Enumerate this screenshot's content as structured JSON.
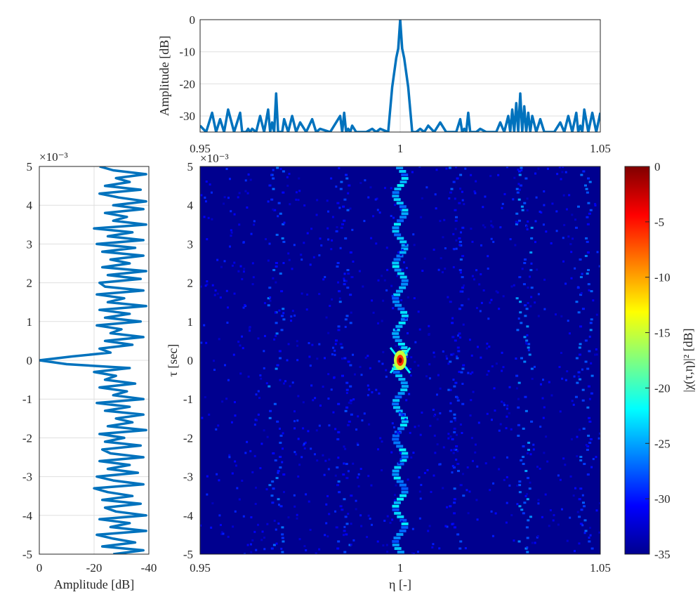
{
  "colors": {
    "series_line": "#0072BD",
    "heatmap_background": "#00008F",
    "axes": "#262626"
  },
  "chart_data": [
    {
      "id": "top-doppler-cut",
      "type": "line",
      "title": "",
      "xlabel": "",
      "ylabel": "Amplitude [dB]",
      "xlim": [
        0.95,
        1.05
      ],
      "ylim": [
        -35,
        0
      ],
      "x_ticks": [
        "0.95",
        "1",
        "1.05"
      ],
      "y_ticks": [
        "0",
        "-10",
        "-20",
        "-30"
      ],
      "grid": true,
      "series": [
        {
          "x": [
            0.95,
            0.953,
            0.955,
            0.957,
            0.96,
            0.961,
            0.962,
            0.963,
            0.965,
            0.967,
            0.968,
            0.969,
            0.97,
            0.971,
            0.973,
            0.975,
            0.978,
            0.98,
            0.985,
            0.986,
            0.987,
            0.988,
            0.99,
            0.993,
            0.995,
            0.997,
            0.998,
            0.999,
            0.9995,
            1.0,
            1.0005,
            1.001,
            1.002,
            1.003,
            1.005,
            1.007,
            1.01,
            1.013,
            1.015,
            1.016,
            1.017,
            1.018,
            1.02,
            1.023,
            1.025,
            1.027,
            1.028,
            1.029,
            1.03,
            1.031,
            1.032,
            1.033,
            1.035,
            1.037,
            1.04,
            1.042,
            1.044,
            1.045,
            1.046,
            1.048,
            1.05
          ],
          "y": [
            -33,
            -29,
            -31,
            -28,
            -29,
            -35,
            -34,
            -34,
            -30,
            -28,
            -32,
            -23,
            -35,
            -31,
            -30,
            -32,
            -31,
            -34,
            -30,
            -29,
            -34,
            -33,
            -35,
            -34,
            -34,
            -35,
            -21,
            -12,
            -9,
            0,
            -9,
            -12,
            -21,
            -35,
            -34,
            -33,
            -32,
            -35,
            -31,
            -34,
            -29,
            -35,
            -34,
            -35,
            -32,
            -30,
            -28,
            -26,
            -23,
            -27,
            -29,
            -30,
            -31,
            -35,
            -32,
            -30,
            -29,
            -33,
            -28,
            -29,
            -29
          ]
        }
      ]
    },
    {
      "id": "left-delay-cut",
      "type": "line",
      "title": "",
      "xlabel": "Amplitude [dB]",
      "ylabel": "",
      "xlim": [
        0,
        -40
      ],
      "ylim": [
        -5,
        5
      ],
      "x_ticks": [
        "0",
        "-20",
        "-40"
      ],
      "y_ticks": [
        "5",
        "4",
        "3",
        "2",
        "1",
        "0",
        "-1",
        "-2",
        "-3",
        "-4",
        "-5"
      ],
      "y_exponent": "×10⁻³",
      "grid": true,
      "series": [
        {
          "tau": [
            -5.0,
            -4.9,
            -4.8,
            -4.7,
            -4.6,
            -4.5,
            -4.4,
            -4.3,
            -4.2,
            -4.1,
            -4.0,
            -3.9,
            -3.8,
            -3.7,
            -3.6,
            -3.5,
            -3.4,
            -3.3,
            -3.2,
            -3.1,
            -3.0,
            -2.9,
            -2.8,
            -2.7,
            -2.6,
            -2.5,
            -2.4,
            -2.3,
            -2.2,
            -2.1,
            -2.0,
            -1.9,
            -1.8,
            -1.7,
            -1.6,
            -1.5,
            -1.4,
            -1.3,
            -1.2,
            -1.1,
            -1.0,
            -0.9,
            -0.8,
            -0.7,
            -0.6,
            -0.5,
            -0.4,
            -0.3,
            -0.2,
            -0.1,
            0.0,
            0.1,
            0.2,
            0.3,
            0.4,
            0.5,
            0.6,
            0.7,
            0.8,
            0.9,
            1.0,
            1.1,
            1.2,
            1.3,
            1.4,
            1.5,
            1.6,
            1.7,
            1.8,
            1.9,
            2.0,
            2.1,
            2.2,
            2.3,
            2.4,
            2.5,
            2.6,
            2.7,
            2.8,
            2.9,
            3.0,
            3.1,
            3.2,
            3.3,
            3.4,
            3.5,
            3.6,
            3.7,
            3.8,
            3.9,
            4.0,
            4.1,
            4.2,
            4.3,
            4.4,
            4.5,
            4.6,
            4.7,
            4.8,
            4.9,
            5.0
          ],
          "amplitude_db": [
            -27,
            -38,
            -23,
            -35,
            -27,
            -21,
            -39,
            -26,
            -33,
            -22,
            -39,
            -28,
            -24,
            -37,
            -23,
            -34,
            -25,
            -20,
            -38,
            -27,
            -21,
            -36,
            -25,
            -33,
            -22,
            -38,
            -26,
            -23,
            -37,
            -24,
            -31,
            -22,
            -39,
            -25,
            -34,
            -28,
            -38,
            -24,
            -33,
            -21,
            -38,
            -27,
            -32,
            -22,
            -35,
            -24,
            -28,
            -20,
            -33,
            -10,
            0,
            -12,
            -26,
            -22,
            -34,
            -24,
            -38,
            -26,
            -30,
            -21,
            -37,
            -24,
            -33,
            -22,
            -39,
            -25,
            -31,
            -21,
            -38,
            -24,
            -22,
            -37,
            -25,
            -39,
            -23,
            -33,
            -26,
            -38,
            -23,
            -35,
            -21,
            -38,
            -25,
            -34,
            -20,
            -39,
            -27,
            -32,
            -24,
            -38,
            -27,
            -39,
            -29,
            -22,
            -37,
            -24,
            -33,
            -28,
            -39,
            -27,
            -22
          ]
        }
      ]
    },
    {
      "id": "ambiguity-heatmap",
      "type": "heatmap",
      "title": "",
      "xlabel": "η [-]",
      "ylabel": "τ [sec]",
      "xlim": [
        0.95,
        1.05
      ],
      "ylim": [
        -5,
        5
      ],
      "x_ticks": [
        "0.95",
        "1",
        "1.05"
      ],
      "y_ticks": [
        "5",
        "4",
        "3",
        "2",
        "1",
        "0",
        "-1",
        "-2",
        "-3",
        "-4",
        "-5"
      ],
      "y_exponent": "×10⁻³",
      "color_range_db": [
        -35,
        0
      ],
      "colorbar_label": "|χ(τ,η)|² [dB]",
      "colorbar_ticks": [
        "0",
        "-5",
        "-10",
        "-15",
        "-20",
        "-25",
        "-30",
        "-35"
      ],
      "colormap": "jet",
      "features": [
        {
          "kind": "ridge",
          "eta": 1.0,
          "tau_range": [
            -5,
            5
          ],
          "level_db": -22
        },
        {
          "kind": "peak",
          "eta": 1.0,
          "tau": 0,
          "level_db": 0
        },
        {
          "kind": "sidelobe-band",
          "eta": 0.969,
          "level_db": -31
        },
        {
          "kind": "sidelobe-band",
          "eta": 0.986,
          "level_db": -32
        },
        {
          "kind": "sidelobe-band",
          "eta": 1.014,
          "level_db": -32
        },
        {
          "kind": "sidelobe-band",
          "eta": 1.031,
          "level_db": -30
        },
        {
          "kind": "sidelobe-band",
          "eta": 1.046,
          "level_db": -31
        }
      ]
    }
  ],
  "text": {
    "top_ylabel": "Amplitude [dB]",
    "left_xlabel": "Amplitude [dB]",
    "main_xlabel": "η [-]",
    "main_ylabel": "τ [sec]",
    "colorbar_label": "|χ(τ,η)|² [dB]",
    "exp_left": "×10⁻³",
    "exp_main": "×10⁻³"
  }
}
